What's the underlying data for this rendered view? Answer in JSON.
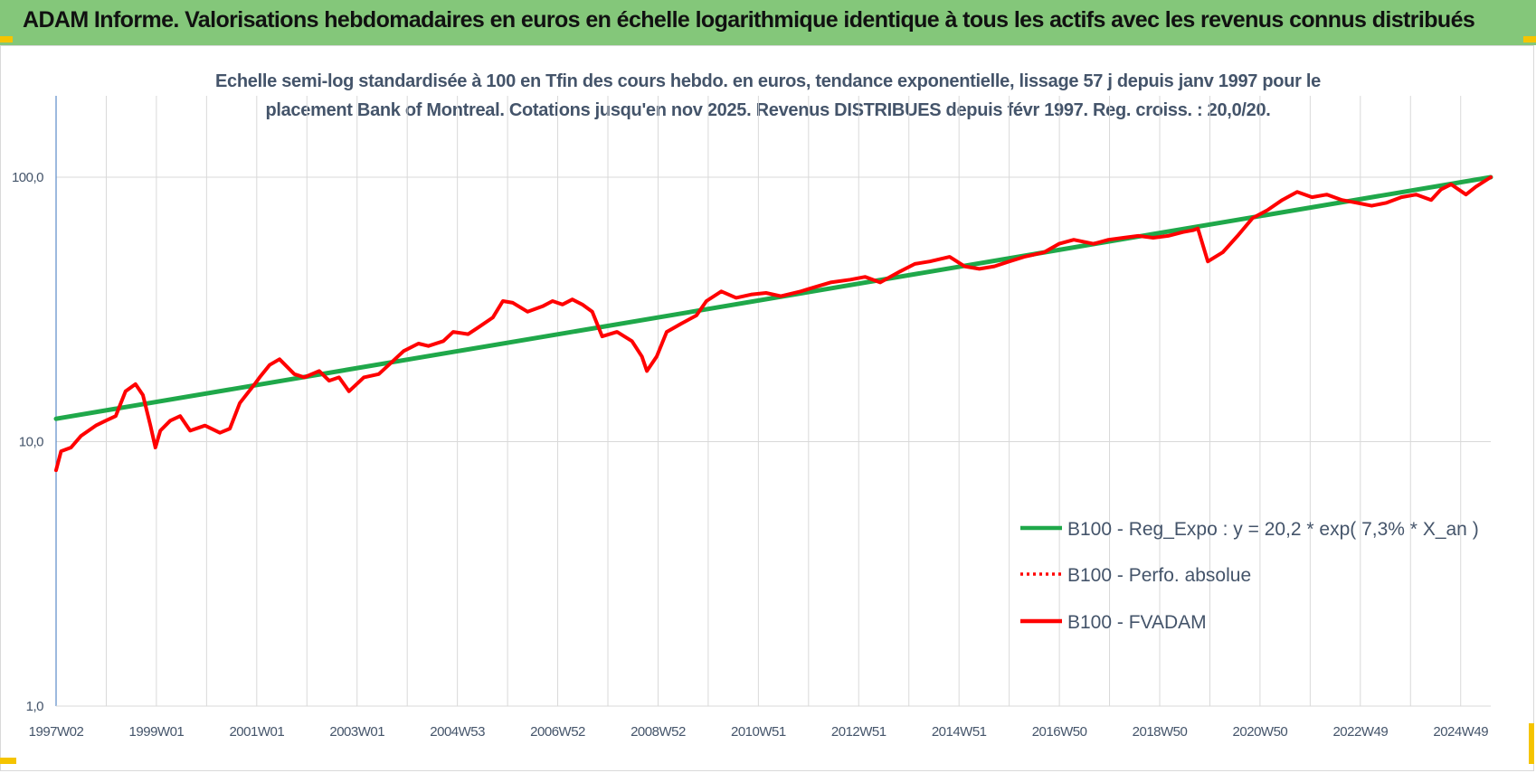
{
  "header": {
    "title": "ADAM Informe. Valorisations hebdomadaires en euros en échelle logarithmique identique à tous les actifs avec les revenus connus distribués"
  },
  "colors": {
    "header_bg": "#84c77a",
    "regression": "#1fa84a",
    "series": "#ff0000",
    "grid": "#d9d9d9",
    "axis_text": "#44546a",
    "corner": "#f5c400"
  },
  "chart_data": {
    "type": "line",
    "title_line1": "Echelle semi-log standardisée à 100 en Tfin des cours hebdo. en euros, tendance exponentielle, lissage 57 j depuis janv 1997 pour le",
    "title_line2": "placement Bank of Montreal. Cotations jusqu'en nov 2025.  Revenus DISTRIBUES depuis févr 1997.  Reg. croiss. : 20,0/20.",
    "y_scale": "log",
    "ylim": [
      1,
      100
    ],
    "y_ticks": [
      "1,0",
      "10,0",
      "100,0"
    ],
    "x_tick_labels": [
      "1997W02",
      "1999W01",
      "2001W01",
      "2003W01",
      "2004W53",
      "2006W52",
      "2008W52",
      "2010W51",
      "2012W51",
      "2014W51",
      "2016W50",
      "2018W50",
      "2020W50",
      "2022W49",
      "2024W49"
    ],
    "x_range_years": [
      1997.0,
      2025.9
    ],
    "grid": "vertical and horizontal",
    "legend_position": "bottom-right",
    "series": [
      {
        "name": "B100 - Reg_Expo : y = 20,2 * exp( 7,3% *  X_an )",
        "style": "solid",
        "color": "#1fa84a",
        "x": [
          1997.0,
          2025.9
        ],
        "y": [
          12.2,
          100.0
        ]
      },
      {
        "name": "B100 - Perfo. absolue",
        "style": "dotted",
        "color": "#ff0000",
        "x": [],
        "y": []
      },
      {
        "name": "B100 - FVADAM",
        "style": "solid",
        "color": "#ff0000",
        "x": [
          1997.0,
          1997.1,
          1997.3,
          1997.5,
          1997.8,
          1998.0,
          1998.2,
          1998.4,
          1998.6,
          1998.75,
          1998.9,
          1999.0,
          1999.1,
          1999.3,
          1999.5,
          1999.7,
          2000.0,
          2000.3,
          2000.5,
          2000.7,
          2001.0,
          2001.1,
          2001.3,
          2001.5,
          2001.8,
          2002.0,
          2002.3,
          2002.5,
          2002.7,
          2002.9,
          2003.2,
          2003.5,
          2003.7,
          2004.0,
          2004.3,
          2004.5,
          2004.8,
          2005.0,
          2005.3,
          2005.5,
          2005.8,
          2006.0,
          2006.2,
          2006.5,
          2006.8,
          2007.0,
          2007.2,
          2007.4,
          2007.6,
          2007.8,
          2008.0,
          2008.3,
          2008.6,
          2008.8,
          2008.9,
          2009.1,
          2009.3,
          2009.6,
          2009.9,
          2010.1,
          2010.4,
          2010.7,
          2011.0,
          2011.3,
          2011.6,
          2012.0,
          2012.3,
          2012.6,
          2013.0,
          2013.3,
          2013.6,
          2014.0,
          2014.3,
          2014.6,
          2015.0,
          2015.3,
          2015.6,
          2015.9,
          2016.2,
          2016.5,
          2016.9,
          2017.2,
          2017.5,
          2017.9,
          2018.2,
          2018.5,
          2018.8,
          2019.1,
          2019.4,
          2019.7,
          2019.9,
          2020.0,
          2020.2,
          2020.5,
          2020.8,
          2021.1,
          2021.4,
          2021.7,
          2022.0,
          2022.3,
          2022.6,
          2022.9,
          2023.2,
          2023.5,
          2023.8,
          2024.1,
          2024.4,
          2024.7,
          2024.9,
          2025.1,
          2025.4,
          2025.6,
          2025.9
        ],
        "y": [
          7.8,
          9.2,
          9.5,
          10.5,
          11.5,
          12.0,
          12.5,
          15.5,
          16.5,
          15.0,
          11.5,
          9.5,
          11.0,
          12.0,
          12.5,
          11.0,
          11.5,
          10.8,
          11.2,
          14.0,
          16.5,
          17.5,
          19.5,
          20.5,
          18.0,
          17.5,
          18.5,
          17.0,
          17.5,
          15.5,
          17.5,
          18.0,
          19.5,
          22.0,
          23.5,
          23.0,
          24.0,
          26.0,
          25.5,
          27.0,
          29.5,
          34.0,
          33.5,
          31.0,
          32.5,
          34.0,
          33.0,
          34.5,
          33.0,
          31.0,
          25.0,
          26.0,
          24.0,
          21.0,
          18.5,
          21.0,
          26.0,
          28.0,
          30.0,
          34.0,
          37.0,
          35.0,
          36.0,
          36.5,
          35.5,
          37.0,
          38.5,
          40.0,
          41.0,
          42.0,
          40.0,
          44.0,
          47.0,
          48.0,
          50.0,
          46.0,
          45.0,
          46.0,
          48.0,
          50.0,
          52.0,
          56.0,
          58.0,
          56.0,
          58.0,
          59.0,
          60.0,
          59.0,
          60.0,
          62.0,
          63.0,
          64.0,
          48.0,
          52.0,
          60.0,
          70.0,
          75.0,
          82.0,
          88.0,
          84.0,
          86.0,
          82.0,
          80.0,
          78.0,
          80.0,
          84.0,
          86.0,
          82.0,
          90.0,
          94.0,
          86.0,
          92.0,
          100.0
        ]
      }
    ]
  }
}
